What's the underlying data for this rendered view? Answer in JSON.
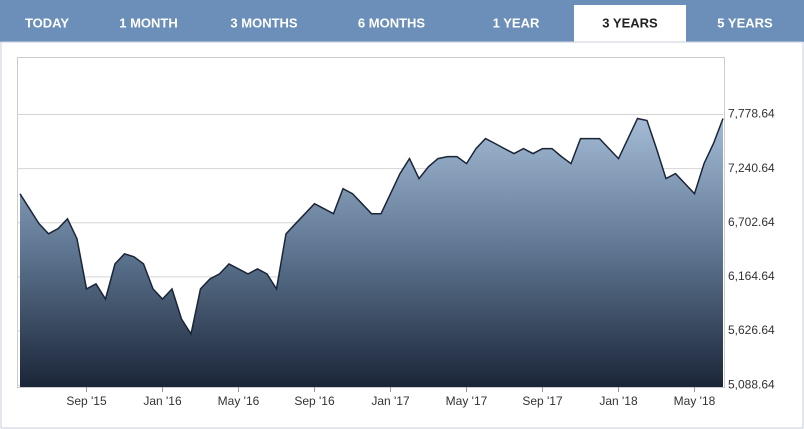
{
  "tabs": [
    "TODAY",
    "1 MONTH",
    "3 MONTHS",
    "6 MONTHS",
    "1 YEAR",
    "3 YEARS",
    "5 YEARS"
  ],
  "active_tab": 5,
  "chart_data": {
    "type": "area",
    "categories": [
      null,
      null,
      null,
      null,
      null,
      null,
      null,
      "Sep '15",
      null,
      null,
      null,
      null,
      null,
      null,
      null,
      "Jan '16",
      null,
      null,
      null,
      null,
      null,
      null,
      null,
      "May '16",
      null,
      null,
      null,
      null,
      null,
      null,
      null,
      "Sep '16",
      null,
      null,
      null,
      null,
      null,
      null,
      null,
      "Jan '17",
      null,
      null,
      null,
      null,
      null,
      null,
      null,
      "May '17",
      null,
      null,
      null,
      null,
      null,
      null,
      null,
      "Sep '17",
      null,
      null,
      null,
      null,
      null,
      null,
      null,
      "Jan '18",
      null,
      null,
      null,
      null,
      null,
      null,
      null,
      "May '18",
      null,
      null,
      null
    ],
    "values": [
      6990,
      6842,
      6693,
      6593,
      6643,
      6742,
      6543,
      6045,
      6095,
      5945,
      6294,
      6394,
      6364,
      6294,
      6045,
      5945,
      6045,
      5746,
      5597,
      6045,
      6144,
      6194,
      6294,
      6244,
      6194,
      6244,
      6194,
      6045,
      6593,
      6693,
      6792,
      6892,
      6842,
      6792,
      7041,
      6991,
      6892,
      6792,
      6792,
      6991,
      7191,
      7340,
      7141,
      7260,
      7340,
      7360,
      7360,
      7290,
      7440,
      7539,
      7490,
      7440,
      7390,
      7440,
      7390,
      7440,
      7440,
      7360,
      7290,
      7539,
      7539,
      7539,
      7440,
      7340,
      7539,
      7739,
      7719,
      7440,
      7141,
      7191,
      7092,
      6991,
      7290,
      7490,
      7739
    ],
    "color": "#1b2538",
    "ylim": [
      5070,
      8340
    ],
    "yticks": [
      {
        "value": 5088.64,
        "label": "5,088.64"
      },
      {
        "value": 5626.64,
        "label": "5,626.64"
      },
      {
        "value": 6164.64,
        "label": "6,164.64"
      },
      {
        "value": 6702.64,
        "label": "6,702.64"
      },
      {
        "value": 7240.64,
        "label": "7,240.64"
      },
      {
        "value": 7778.64,
        "label": "7,778.64"
      }
    ],
    "grid": true
  }
}
